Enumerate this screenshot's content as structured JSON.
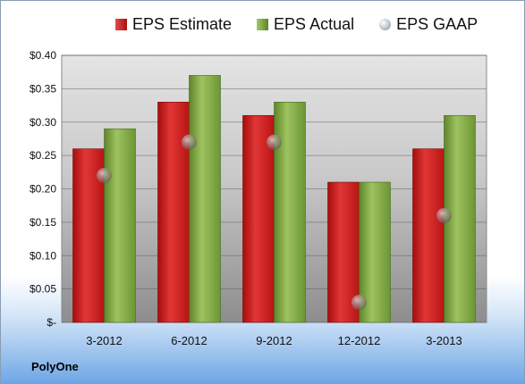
{
  "chart_data": {
    "type": "bar",
    "title": "",
    "xlabel": "",
    "ylabel": "",
    "categories": [
      "3-2012",
      "6-2012",
      "9-2012",
      "12-2012",
      "3-2013"
    ],
    "series": [
      {
        "name": "EPS Estimate",
        "type": "bar",
        "values": [
          0.26,
          0.33,
          0.31,
          0.21,
          0.26
        ],
        "color": "#cc1f1f"
      },
      {
        "name": "EPS Actual",
        "type": "bar",
        "values": [
          0.29,
          0.37,
          0.33,
          0.21,
          0.31
        ],
        "color": "#7da33c"
      },
      {
        "name": "EPS GAAP",
        "type": "scatter",
        "values": [
          0.22,
          0.27,
          0.27,
          0.03,
          0.16
        ],
        "color": "#b8c0cc"
      }
    ],
    "ylim": [
      0,
      0.4
    ],
    "yticks": [
      0,
      0.05,
      0.1,
      0.15,
      0.2,
      0.25,
      0.3,
      0.35,
      0.4
    ],
    "ytick_labels": [
      "$-",
      "$0.05",
      "$0.10",
      "$0.15",
      "$0.20",
      "$0.25",
      "$0.30",
      "$0.35",
      "$0.40"
    ],
    "grid": true,
    "legend_position": "top"
  },
  "company": "PolyOne"
}
